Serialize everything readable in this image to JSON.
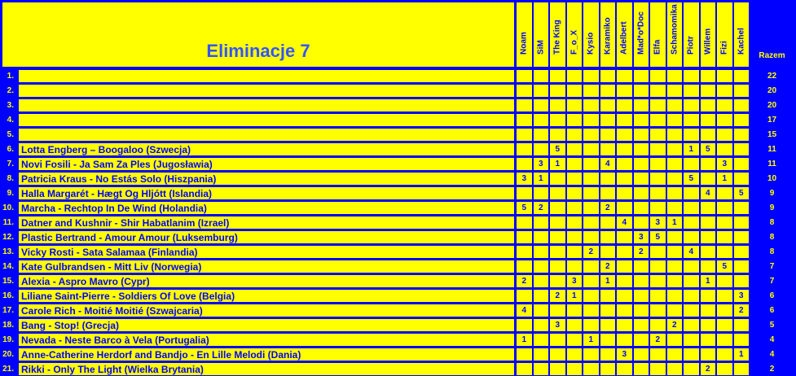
{
  "title": "Eliminacje 7",
  "total_header": "Razem",
  "jurors": [
    "Noam",
    "SiM",
    "The King",
    "F_o_X",
    "Kysio",
    "Karamiko",
    "Adelbert",
    "Mad*o*Doc",
    "Elfa",
    "Schamomika",
    "Piotr",
    "Willem",
    "Fizi",
    "Kachel"
  ],
  "rows": [
    {
      "num": "1.",
      "song": "",
      "scores": [
        "",
        "",
        "",
        "",
        "",
        "",
        "",
        "",
        "",
        "",
        "",
        "",
        "",
        ""
      ],
      "total": "22"
    },
    {
      "num": "2.",
      "song": "",
      "scores": [
        "",
        "",
        "",
        "",
        "",
        "",
        "",
        "",
        "",
        "",
        "",
        "",
        "",
        ""
      ],
      "total": "20"
    },
    {
      "num": "3.",
      "song": "",
      "scores": [
        "",
        "",
        "",
        "",
        "",
        "",
        "",
        "",
        "",
        "",
        "",
        "",
        "",
        ""
      ],
      "total": "20"
    },
    {
      "num": "4.",
      "song": "",
      "scores": [
        "",
        "",
        "",
        "",
        "",
        "",
        "",
        "",
        "",
        "",
        "",
        "",
        "",
        ""
      ],
      "total": "17"
    },
    {
      "num": "5.",
      "song": "",
      "scores": [
        "",
        "",
        "",
        "",
        "",
        "",
        "",
        "",
        "",
        "",
        "",
        "",
        "",
        ""
      ],
      "total": "15"
    },
    {
      "num": "6.",
      "song": "Lotta Engberg – Boogaloo (Szwecja)",
      "scores": [
        "",
        "",
        "5",
        "",
        "",
        "",
        "",
        "",
        "",
        "",
        "1",
        "5",
        "",
        ""
      ],
      "total": "11"
    },
    {
      "num": "7.",
      "song": "Novi Fosili - Ja Sam Za Ples (Jugosławia)",
      "scores": [
        "",
        "3",
        "1",
        "",
        "",
        "4",
        "",
        "",
        "",
        "",
        "",
        "",
        "3",
        ""
      ],
      "total": "11"
    },
    {
      "num": "8.",
      "song": "Patricia Kraus - No Estás Solo (Hiszpania)",
      "scores": [
        "3",
        "1",
        "",
        "",
        "",
        "",
        "",
        "",
        "",
        "",
        "5",
        "",
        "1",
        ""
      ],
      "total": "10"
    },
    {
      "num": "9.",
      "song": "Halla Margarét - Hægt Og Hljótt (Islandia)",
      "scores": [
        "",
        "",
        "",
        "",
        "",
        "",
        "",
        "",
        "",
        "",
        "",
        "4",
        "",
        "5"
      ],
      "total": "9"
    },
    {
      "num": "10.",
      "song": "Marcha - Rechtop In De Wind (Holandia)",
      "scores": [
        "5",
        "2",
        "",
        "",
        "",
        "2",
        "",
        "",
        "",
        "",
        "",
        "",
        "",
        ""
      ],
      "total": "9"
    },
    {
      "num": "11.",
      "song": "Datner and Kushnir - Shir Habatlanim (Izrael)",
      "scores": [
        "",
        "",
        "",
        "",
        "",
        "",
        "4",
        "",
        "3",
        "1",
        "",
        "",
        "",
        ""
      ],
      "total": "8"
    },
    {
      "num": "12.",
      "song": "Plastic Bertrand - Amour Amour (Luksemburg)",
      "scores": [
        "",
        "",
        "",
        "",
        "",
        "",
        "",
        "3",
        "5",
        "",
        "",
        "",
        "",
        ""
      ],
      "total": "8"
    },
    {
      "num": "13.",
      "song": "Vicky Rosti - Sata Salamaa (Finlandia)",
      "scores": [
        "",
        "",
        "",
        "",
        "2",
        "",
        "",
        "2",
        "",
        "",
        "4",
        "",
        "",
        ""
      ],
      "total": "8"
    },
    {
      "num": "14.",
      "song": "Kate Gulbrandsen - Mitt Liv (Norwegia)",
      "scores": [
        "",
        "",
        "",
        "",
        "",
        "2",
        "",
        "",
        "",
        "",
        "",
        "",
        "5",
        ""
      ],
      "total": "7"
    },
    {
      "num": "15.",
      "song": "Alexia - Aspro Mavro (Cypr)",
      "scores": [
        "2",
        "",
        "",
        "3",
        "",
        "1",
        "",
        "",
        "",
        "",
        "",
        "1",
        "",
        ""
      ],
      "total": "7"
    },
    {
      "num": "16.",
      "song": "Liliane Saint-Pierre - Soldiers Of Love (Belgia)",
      "scores": [
        "",
        "",
        "2",
        "1",
        "",
        "",
        "",
        "",
        "",
        "",
        "",
        "",
        "",
        "3"
      ],
      "total": "6"
    },
    {
      "num": "17.",
      "song": "Carole Rich - Moitié Moitié (Szwajcaria)",
      "scores": [
        "4",
        "",
        "",
        "",
        "",
        "",
        "",
        "",
        "",
        "",
        "",
        "",
        "",
        "2"
      ],
      "total": "6"
    },
    {
      "num": "18.",
      "song": "Bang - Stop! (Grecja)",
      "scores": [
        "",
        "",
        "3",
        "",
        "",
        "",
        "",
        "",
        "",
        "2",
        "",
        "",
        "",
        ""
      ],
      "total": "5"
    },
    {
      "num": "19.",
      "song": "Nevada - Neste Barco à Vela (Portugalia)",
      "scores": [
        "1",
        "",
        "",
        "",
        "1",
        "",
        "",
        "",
        "2",
        "",
        "",
        "",
        "",
        ""
      ],
      "total": "4"
    },
    {
      "num": "20.",
      "song": "Anne-Catherine Herdorf and Bandjo - En Lille Melodi (Dania)",
      "scores": [
        "",
        "",
        "",
        "",
        "",
        "",
        "3",
        "",
        "",
        "",
        "",
        "",
        "",
        "1"
      ],
      "total": "4"
    },
    {
      "num": "21.",
      "song": "Rikki - Only The Light (Wielka Brytania)",
      "scores": [
        "",
        "",
        "",
        "",
        "",
        "",
        "",
        "",
        "",
        "",
        "",
        "2",
        "",
        ""
      ],
      "total": "2"
    }
  ]
}
